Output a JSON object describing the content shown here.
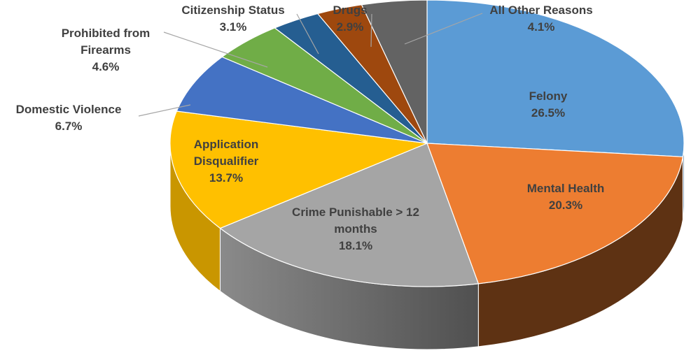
{
  "chart_data": {
    "type": "pie",
    "style": "3d",
    "title": "",
    "slices": [
      {
        "label": "Felony",
        "label_lines": [
          "Felony"
        ],
        "pct_label": "26.5%",
        "value": 26.5,
        "color": "#5b9bd5",
        "side_color": "#2e5a84",
        "label_pos": "inside"
      },
      {
        "label": "Mental Health",
        "label_lines": [
          "Mental Health"
        ],
        "pct_label": "20.3%",
        "value": 20.3,
        "color": "#ed7d31",
        "side_color": "#5e3213",
        "label_pos": "inside"
      },
      {
        "label": "Crime Punishable > 12 months",
        "label_lines": [
          "Crime Punishable > 12",
          "months"
        ],
        "pct_label": "18.1%",
        "value": 18.1,
        "color": "#a5a5a5",
        "side_color": "#6e6e6e",
        "label_pos": "inside"
      },
      {
        "label": "Application Disqualifier",
        "label_lines": [
          "Application",
          "Disqualifier"
        ],
        "pct_label": "13.7%",
        "value": 13.7,
        "color": "#ffc000",
        "side_color": "#c99600",
        "label_pos": "inside"
      },
      {
        "label": "Domestic Violence",
        "label_lines": [
          "Domestic Violence"
        ],
        "pct_label": "6.7%",
        "value": 6.7,
        "color": "#4472c4",
        "side_color": "#2a4677",
        "label_pos": "outside"
      },
      {
        "label": "Prohibited from Firearms",
        "label_lines": [
          "Prohibited from",
          "Firearms"
        ],
        "pct_label": "4.6%",
        "value": 4.6,
        "color": "#70ad47",
        "side_color": "#456b2c",
        "label_pos": "outside"
      },
      {
        "label": "Citizenship Status",
        "label_lines": [
          "Citizenship Status"
        ],
        "pct_label": "3.1%",
        "value": 3.1,
        "color": "#255e91",
        "side_color": "#163a5a",
        "label_pos": "outside"
      },
      {
        "label": "Drugs",
        "label_lines": [
          "Drugs"
        ],
        "pct_label": "2.9%",
        "value": 2.9,
        "color": "#9e480e",
        "side_color": "#5f2b08",
        "label_pos": "outside"
      },
      {
        "label": "All Other Reasons",
        "label_lines": [
          "All Other Reasons"
        ],
        "pct_label": "4.1%",
        "value": 4.1,
        "color": "#636363",
        "side_color": "#3c3c3c",
        "label_pos": "outside"
      }
    ],
    "legend": "none"
  }
}
